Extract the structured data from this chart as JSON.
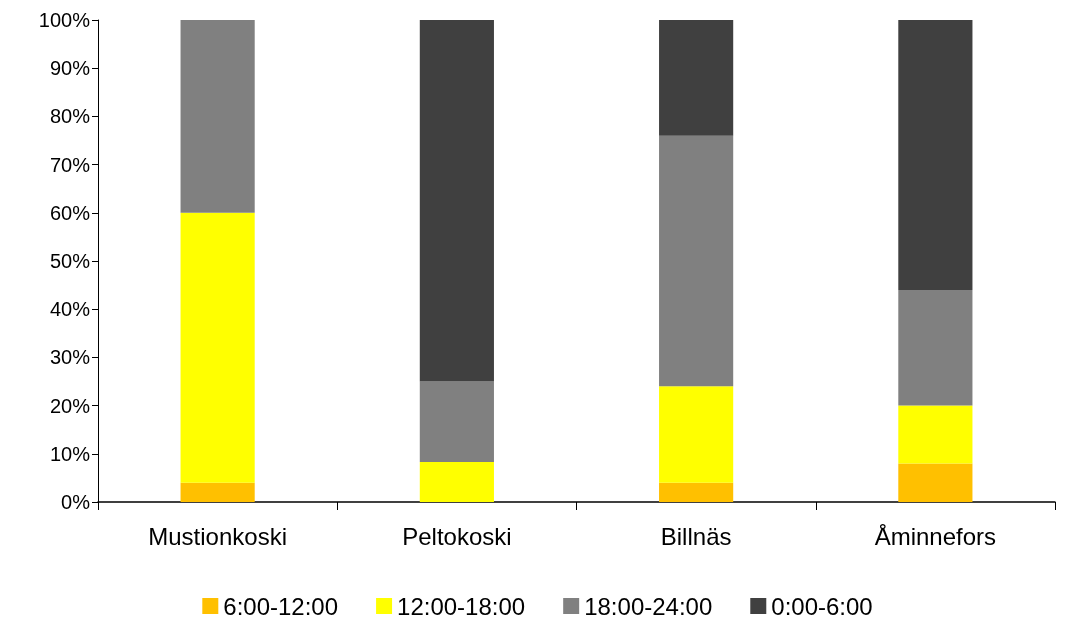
{
  "chart_data": {
    "type": "bar",
    "stacked": true,
    "categories": [
      "Mustionkoski",
      "Peltokoski",
      "Billnäs",
      "Åminnefors"
    ],
    "series": [
      {
        "name": "6:00-12:00",
        "color": "#ffc000",
        "values": [
          4,
          0,
          4,
          8
        ]
      },
      {
        "name": "12:00-18:00",
        "color": "#ffff00",
        "values": [
          56,
          8.3,
          20,
          12
        ]
      },
      {
        "name": "18:00-24:00",
        "color": "#808080",
        "values": [
          40,
          16.7,
          52,
          24
        ]
      },
      {
        "name": "0:00-6:00",
        "color": "#404040",
        "values": [
          0,
          75,
          24,
          56
        ]
      }
    ],
    "ylim": [
      0,
      100
    ],
    "yticks": [
      {
        "value": 0,
        "label": "0%"
      },
      {
        "value": 10,
        "label": "10%"
      },
      {
        "value": 20,
        "label": "20%"
      },
      {
        "value": 30,
        "label": "30%"
      },
      {
        "value": 40,
        "label": "40%"
      },
      {
        "value": 50,
        "label": "50%"
      },
      {
        "value": 60,
        "label": "60%"
      },
      {
        "value": 70,
        "label": "70%"
      },
      {
        "value": 80,
        "label": "80%"
      },
      {
        "value": 90,
        "label": "90%"
      },
      {
        "value": 100,
        "label": "100%"
      }
    ],
    "grid": false,
    "legend": "bottom"
  }
}
